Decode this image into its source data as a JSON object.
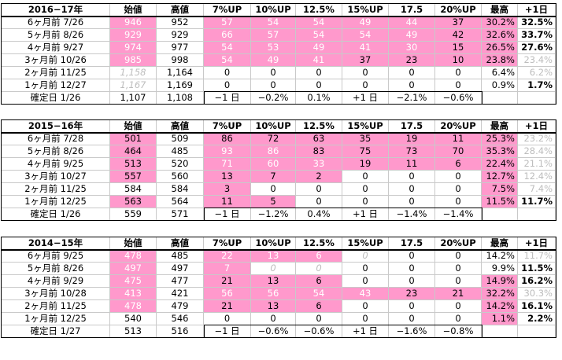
{
  "columns": [
    "始値",
    "高値",
    "7%UP",
    "10%UP",
    "12.5%",
    "15%UP",
    "17.5",
    "20%UP",
    "最高",
    "+1日"
  ],
  "colors": {
    "pink": "#ff99cc",
    "grid": "#c9c9c9",
    "gray_text": "#bdbdbd"
  },
  "blocks": [
    {
      "title": "2016−17年",
      "rows": [
        {
          "label": "6ヶ月前  7/26",
          "cells": [
            {
              "v": "946",
              "s": "pink"
            },
            {
              "v": "952"
            },
            {
              "v": "57",
              "s": "pink"
            },
            {
              "v": "54",
              "s": "pink"
            },
            {
              "v": "54",
              "s": "pink"
            },
            {
              "v": "49",
              "s": "pink"
            },
            {
              "v": "44",
              "s": "pink"
            },
            {
              "v": "37",
              "s": "pinkdark"
            },
            {
              "v": "30.2%",
              "s": "pinkdark"
            },
            {
              "v": "32.5%",
              "s": "bold"
            }
          ]
        },
        {
          "label": "5ヶ月前  8/26",
          "cells": [
            {
              "v": "929",
              "s": "pink"
            },
            {
              "v": "929"
            },
            {
              "v": "66",
              "s": "pink"
            },
            {
              "v": "57",
              "s": "pink"
            },
            {
              "v": "54",
              "s": "pink"
            },
            {
              "v": "54",
              "s": "pink"
            },
            {
              "v": "49",
              "s": "pink"
            },
            {
              "v": "42",
              "s": "pinkdark"
            },
            {
              "v": "32.6%",
              "s": "pinkdark"
            },
            {
              "v": "33.7%",
              "s": "bold"
            }
          ]
        },
        {
          "label": "4ヶ月前  9/27",
          "cells": [
            {
              "v": "974",
              "s": "pink"
            },
            {
              "v": "977"
            },
            {
              "v": "54",
              "s": "pink"
            },
            {
              "v": "53",
              "s": "pink"
            },
            {
              "v": "49",
              "s": "pink"
            },
            {
              "v": "41",
              "s": "pink"
            },
            {
              "v": "30",
              "s": "pink"
            },
            {
              "v": "15",
              "s": "pinkdark"
            },
            {
              "v": "26.5%",
              "s": "pinkdark"
            },
            {
              "v": "27.6%",
              "s": "bold"
            }
          ]
        },
        {
          "label": "3ヶ月前  10/26",
          "cells": [
            {
              "v": "985",
              "s": "pink"
            },
            {
              "v": "998"
            },
            {
              "v": "54",
              "s": "pink"
            },
            {
              "v": "49",
              "s": "pink"
            },
            {
              "v": "41",
              "s": "pink"
            },
            {
              "v": "37",
              "s": "pinkdark"
            },
            {
              "v": "23",
              "s": "pinkdark"
            },
            {
              "v": "10",
              "s": "pinkdark"
            },
            {
              "v": "23.8%",
              "s": "pinkdark"
            },
            {
              "v": "23.4%",
              "s": "gray"
            }
          ]
        },
        {
          "label": "2ヶ月前  11/25",
          "cells": [
            {
              "v": "1,158",
              "s": "gray italic"
            },
            {
              "v": "1,164"
            },
            {
              "v": "0"
            },
            {
              "v": "0"
            },
            {
              "v": "0"
            },
            {
              "v": "0"
            },
            {
              "v": "0"
            },
            {
              "v": "0"
            },
            {
              "v": "6.4%"
            },
            {
              "v": "6.2%",
              "s": "gray"
            }
          ]
        },
        {
          "label": "1ヶ月前  12/27",
          "cells": [
            {
              "v": "1,167",
              "s": "gray italic"
            },
            {
              "v": "1,169"
            },
            {
              "v": "0"
            },
            {
              "v": "0"
            },
            {
              "v": "0"
            },
            {
              "v": "0"
            },
            {
              "v": "0"
            },
            {
              "v": "0"
            },
            {
              "v": "0.9%"
            },
            {
              "v": "1.7%",
              "s": "bold"
            }
          ]
        },
        {
          "label": "確定日  1/26",
          "cells": [
            {
              "v": "1,107"
            },
            {
              "v": "1,108"
            },
            {
              "v": "−1 日"
            },
            {
              "v": "−0.2%"
            },
            {
              "v": "0.1%"
            },
            {
              "v": "+1 日"
            },
            {
              "v": "−2.1%"
            },
            {
              "v": "−0.6%"
            },
            {
              "v": ""
            },
            {
              "v": ""
            }
          ]
        }
      ]
    },
    {
      "title": "2015−16年",
      "rows": [
        {
          "label": "6ヶ月前  7/28",
          "cells": [
            {
              "v": "501",
              "s": "pinkdark"
            },
            {
              "v": "509"
            },
            {
              "v": "86",
              "s": "pinkdark"
            },
            {
              "v": "72",
              "s": "pinkdark"
            },
            {
              "v": "63",
              "s": "pinkdark"
            },
            {
              "v": "35",
              "s": "pinkdark"
            },
            {
              "v": "19",
              "s": "pinkdark"
            },
            {
              "v": "11",
              "s": "pinkdark"
            },
            {
              "v": "25.3%",
              "s": "pinkdark"
            },
            {
              "v": "23.2%",
              "s": "gray"
            }
          ]
        },
        {
          "label": "5ヶ月前  8/26",
          "cells": [
            {
              "v": "464",
              "s": "pinkdark"
            },
            {
              "v": "485"
            },
            {
              "v": "93",
              "s": "pink"
            },
            {
              "v": "86",
              "s": "pink"
            },
            {
              "v": "83",
              "s": "pinkdark"
            },
            {
              "v": "75",
              "s": "pinkdark"
            },
            {
              "v": "73",
              "s": "pinkdark"
            },
            {
              "v": "70",
              "s": "pinkdark"
            },
            {
              "v": "35.3%",
              "s": "pinkdark"
            },
            {
              "v": "28.4%",
              "s": "gray"
            }
          ]
        },
        {
          "label": "4ヶ月前  9/25",
          "cells": [
            {
              "v": "513",
              "s": "pinkdark"
            },
            {
              "v": "520"
            },
            {
              "v": "71",
              "s": "pink"
            },
            {
              "v": "60",
              "s": "pink"
            },
            {
              "v": "33",
              "s": "pink"
            },
            {
              "v": "19",
              "s": "pinkdark"
            },
            {
              "v": "11",
              "s": "pinkdark"
            },
            {
              "v": "6",
              "s": "pinkdark"
            },
            {
              "v": "22.4%",
              "s": "pinkdark"
            },
            {
              "v": "21.1%",
              "s": "gray"
            }
          ]
        },
        {
          "label": "3ヶ月前  10/27",
          "cells": [
            {
              "v": "557",
              "s": "pinkdark"
            },
            {
              "v": "560"
            },
            {
              "v": "13",
              "s": "pinkdark"
            },
            {
              "v": "7",
              "s": "pinkdark"
            },
            {
              "v": "2",
              "s": "pinkdark"
            },
            {
              "v": "0"
            },
            {
              "v": "0"
            },
            {
              "v": "0"
            },
            {
              "v": "12.7%",
              "s": "pinkdark"
            },
            {
              "v": "12.4%",
              "s": "gray"
            }
          ]
        },
        {
          "label": "2ヶ月前  11/25",
          "cells": [
            {
              "v": "584"
            },
            {
              "v": "584"
            },
            {
              "v": "3",
              "s": "pinkdark"
            },
            {
              "v": "0"
            },
            {
              "v": "0"
            },
            {
              "v": "0"
            },
            {
              "v": "0"
            },
            {
              "v": "0"
            },
            {
              "v": "7.5%",
              "s": "pinkdark"
            },
            {
              "v": "7.4%",
              "s": "gray"
            }
          ]
        },
        {
          "label": "1ヶ月前  12/25",
          "cells": [
            {
              "v": "563",
              "s": "pinkdark"
            },
            {
              "v": "564"
            },
            {
              "v": "11",
              "s": "pinkdark"
            },
            {
              "v": "5",
              "s": "pinkdark"
            },
            {
              "v": "0"
            },
            {
              "v": "0"
            },
            {
              "v": "0"
            },
            {
              "v": "0"
            },
            {
              "v": "11.5%",
              "s": "pinkdark"
            },
            {
              "v": "11.7%",
              "s": "bold"
            }
          ]
        },
        {
          "label": "確定日  1/26",
          "cells": [
            {
              "v": "559"
            },
            {
              "v": "571"
            },
            {
              "v": "−1 日"
            },
            {
              "v": "−1.2%"
            },
            {
              "v": "0.4%"
            },
            {
              "v": "+1 日"
            },
            {
              "v": "−1.4%"
            },
            {
              "v": "−1.4%"
            },
            {
              "v": ""
            },
            {
              "v": ""
            }
          ]
        }
      ]
    },
    {
      "title": "2014−15年",
      "rows": [
        {
          "label": "6ヶ月前  9/25",
          "cells": [
            {
              "v": "478",
              "s": "pink"
            },
            {
              "v": "485"
            },
            {
              "v": "22",
              "s": "pink"
            },
            {
              "v": "13",
              "s": "pink"
            },
            {
              "v": "6",
              "s": "pink"
            },
            {
              "v": "0",
              "s": "gray italic"
            },
            {
              "v": "0"
            },
            {
              "v": "0"
            },
            {
              "v": "14.2%"
            },
            {
              "v": "11.7%",
              "s": "gray"
            }
          ]
        },
        {
          "label": "5ヶ月前  8/26",
          "cells": [
            {
              "v": "497",
              "s": "pink"
            },
            {
              "v": "497"
            },
            {
              "v": "7",
              "s": "pink"
            },
            {
              "v": "0",
              "s": "gray italic"
            },
            {
              "v": "0",
              "s": "gray italic"
            },
            {
              "v": "0"
            },
            {
              "v": "0"
            },
            {
              "v": "0"
            },
            {
              "v": "9.9%"
            },
            {
              "v": "11.5%",
              "s": "bold"
            }
          ]
        },
        {
          "label": "4ヶ月前  9/29",
          "cells": [
            {
              "v": "475",
              "s": "pink"
            },
            {
              "v": "477"
            },
            {
              "v": "21",
              "s": "pinkdark"
            },
            {
              "v": "13",
              "s": "pinkdark"
            },
            {
              "v": "6",
              "s": "pinkdark"
            },
            {
              "v": "0"
            },
            {
              "v": "0"
            },
            {
              "v": "0"
            },
            {
              "v": "14.9%",
              "s": "pinkdark"
            },
            {
              "v": "16.2%",
              "s": "bold"
            }
          ]
        },
        {
          "label": "3ヶ月前  10/28",
          "cells": [
            {
              "v": "413",
              "s": "pink"
            },
            {
              "v": "421"
            },
            {
              "v": "56",
              "s": "pink"
            },
            {
              "v": "56",
              "s": "pink"
            },
            {
              "v": "54",
              "s": "pink"
            },
            {
              "v": "43",
              "s": "pink"
            },
            {
              "v": "23",
              "s": "pinkdark"
            },
            {
              "v": "21",
              "s": "pinkdark"
            },
            {
              "v": "32.2%",
              "s": "pinkdark"
            },
            {
              "v": "30.3%",
              "s": "gray"
            }
          ]
        },
        {
          "label": "2ヶ月前  11/25",
          "cells": [
            {
              "v": "478",
              "s": "pink"
            },
            {
              "v": "479"
            },
            {
              "v": "21",
              "s": "pinkdark"
            },
            {
              "v": "13",
              "s": "pinkdark"
            },
            {
              "v": "6",
              "s": "pinkdark"
            },
            {
              "v": "0"
            },
            {
              "v": "0"
            },
            {
              "v": "0"
            },
            {
              "v": "14.2%",
              "s": "pinkdark"
            },
            {
              "v": "16.1%",
              "s": "bold"
            }
          ]
        },
        {
          "label": "1ヶ月前  12/25",
          "cells": [
            {
              "v": "540"
            },
            {
              "v": "546"
            },
            {
              "v": "0"
            },
            {
              "v": "0"
            },
            {
              "v": "0"
            },
            {
              "v": "0"
            },
            {
              "v": "0"
            },
            {
              "v": "0"
            },
            {
              "v": "1.1%",
              "s": "pinkdark"
            },
            {
              "v": "2.2%",
              "s": "bold"
            }
          ]
        },
        {
          "label": "確定日  1/27",
          "cells": [
            {
              "v": "513"
            },
            {
              "v": "516"
            },
            {
              "v": "−1 日"
            },
            {
              "v": "−0.6%"
            },
            {
              "v": "−0.6%"
            },
            {
              "v": "+1 日"
            },
            {
              "v": "−1.6%"
            },
            {
              "v": "−0.8%"
            },
            {
              "v": ""
            },
            {
              "v": ""
            }
          ]
        }
      ]
    }
  ]
}
